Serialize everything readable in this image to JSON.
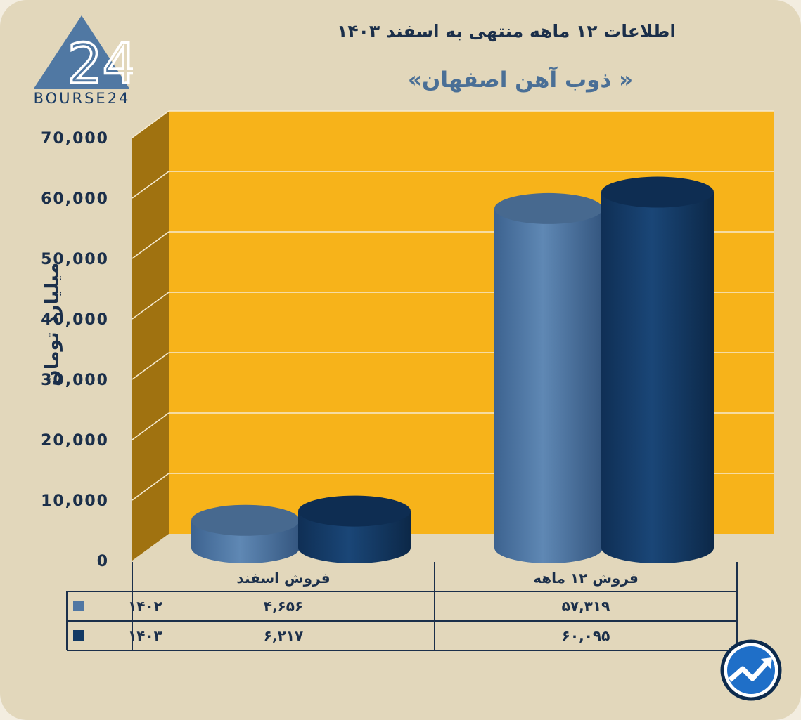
{
  "header": {
    "title": "اطلاعات ۱۲ ماهه منتهی به اسفند ۱۴۰۳",
    "subtitle": "« ذوب آهن اصفهان»"
  },
  "logo": {
    "text": "BOURSE24",
    "mark": "24"
  },
  "colors": {
    "background": "#e2d7bb",
    "plot_back": "#f7b31a",
    "plot_side": "#a07210",
    "series_1402": "#5077a3",
    "series_1403": "#123964",
    "text_dark": "#1b2f4a"
  },
  "chart_data": {
    "type": "bar",
    "style": "3d-cylinder",
    "categories": [
      "فروش اسفند",
      "فروش ۱۲ ماهه"
    ],
    "series": [
      {
        "name": "۱۴۰۲",
        "values": [
          4656,
          57319
        ],
        "labels": [
          "۴,۶۵۶",
          "۵۷,۳۱۹"
        ]
      },
      {
        "name": "۱۴۰۳",
        "values": [
          6217,
          60095
        ],
        "labels": [
          "۶,۲۱۷",
          "۶۰,۰۹۵"
        ]
      }
    ],
    "ylabel": "میلیارد تومان",
    "ylim": [
      0,
      70000
    ],
    "yticks": [
      0,
      10000,
      20000,
      30000,
      40000,
      50000,
      60000,
      70000
    ],
    "ytick_labels": [
      "0",
      "10,000",
      "20,000",
      "30,000",
      "40,000",
      "50,000",
      "60,000",
      "70,000"
    ],
    "grid": true,
    "legend": "data-table-below"
  },
  "icons": {
    "badge": "trend-arrow-icon"
  }
}
